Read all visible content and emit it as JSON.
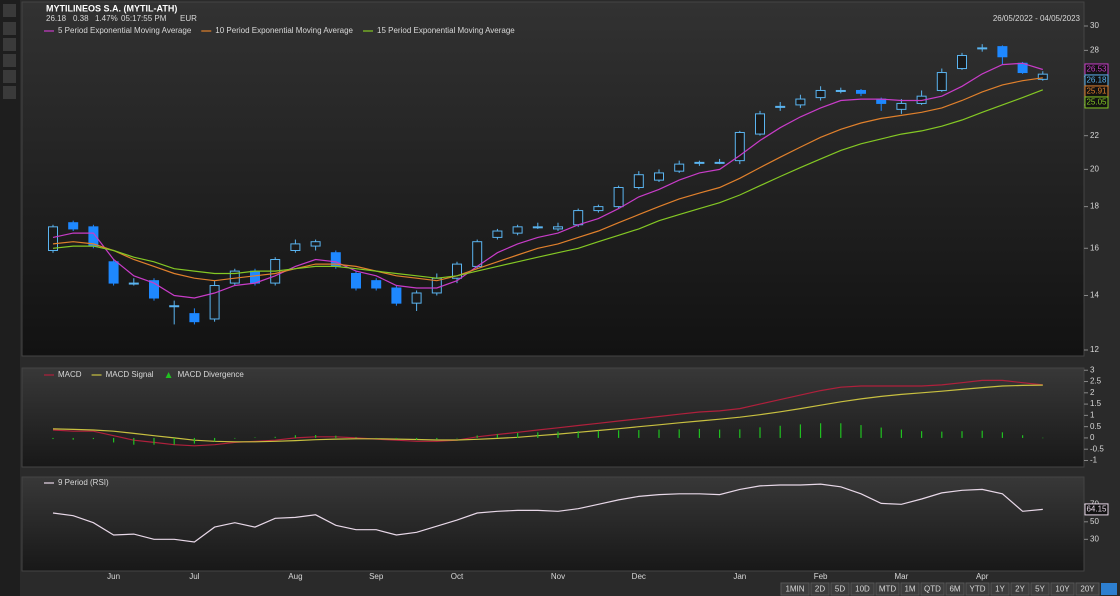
{
  "header": {
    "title": "MYTILINEOS S.A. (MYTIL-ATH)",
    "quote": [
      "26.18",
      "0.38",
      "1.47%",
      "05:17:55 PM",
      "EUR"
    ],
    "range": "26/05/2022 - 04/05/2023"
  },
  "toolbar": [
    "1MIN",
    "2D",
    "5D",
    "10D",
    "MTD",
    "1M",
    "QTD",
    "6M",
    "YTD",
    "1Y",
    "2Y",
    "5Y",
    "10Y",
    "20Y"
  ],
  "chart_data": [
    {
      "type": "candlestick",
      "log_scale": true,
      "up_color": "#5ab4f0",
      "down_color": "#1e88ff",
      "categories": [
        null,
        null,
        null,
        "Jun",
        null,
        null,
        null,
        "Jul",
        null,
        null,
        null,
        null,
        "Aug",
        null,
        null,
        null,
        "Sep",
        null,
        null,
        null,
        "Oct",
        null,
        null,
        null,
        null,
        "Nov",
        null,
        null,
        null,
        "Dec",
        null,
        null,
        null,
        null,
        "Jan",
        null,
        null,
        null,
        "Feb",
        null,
        null,
        null,
        "Mar",
        null,
        null,
        null,
        "Apr",
        null,
        null,
        null
      ],
      "open": [
        15.9,
        17.2,
        17.0,
        15.4,
        14.5,
        14.6,
        13.6,
        13.3,
        13.1,
        14.5,
        15.0,
        14.5,
        15.9,
        16.1,
        15.8,
        14.9,
        14.6,
        14.3,
        13.7,
        14.1,
        14.7,
        15.2,
        16.5,
        16.7,
        17.0,
        16.9,
        17.1,
        17.8,
        18.0,
        19.0,
        19.4,
        19.9,
        20.4,
        20.4,
        20.5,
        22.1,
        23.9,
        24.0,
        24.5,
        25.0,
        25.0,
        24.4,
        23.7,
        24.1,
        25.0,
        26.6,
        28.2,
        28.3,
        27.0,
        25.8
      ],
      "high": [
        17.1,
        17.3,
        17.1,
        15.5,
        14.7,
        14.7,
        13.8,
        13.5,
        14.6,
        15.1,
        15.1,
        15.6,
        16.4,
        16.4,
        15.9,
        15.0,
        14.7,
        14.4,
        14.2,
        14.9,
        15.4,
        16.4,
        16.9,
        17.1,
        17.2,
        17.2,
        17.9,
        18.1,
        19.1,
        19.9,
        20.0,
        20.5,
        20.5,
        20.6,
        22.3,
        23.6,
        24.2,
        24.7,
        25.3,
        25.2,
        25.1,
        24.5,
        24.4,
        25.0,
        26.6,
        27.8,
        28.5,
        28.4,
        27.1,
        26.4
      ],
      "low": [
        15.8,
        16.8,
        16.0,
        14.4,
        14.4,
        13.8,
        12.9,
        12.9,
        13.0,
        14.4,
        14.4,
        14.4,
        15.8,
        15.9,
        15.1,
        14.2,
        14.2,
        13.6,
        13.4,
        14.0,
        14.5,
        15.1,
        16.4,
        16.6,
        16.9,
        16.8,
        17.0,
        17.7,
        17.9,
        18.9,
        19.3,
        19.8,
        20.2,
        20.3,
        20.3,
        22.0,
        23.6,
        23.8,
        24.3,
        24.8,
        24.6,
        23.6,
        23.4,
        24.0,
        24.9,
        26.5,
        27.9,
        26.9,
        26.2,
        25.7
      ],
      "close": [
        17.0,
        16.9,
        16.1,
        14.5,
        14.5,
        13.9,
        13.6,
        13.0,
        14.4,
        15.0,
        14.5,
        15.5,
        16.2,
        16.3,
        15.2,
        14.3,
        14.3,
        13.7,
        14.1,
        14.7,
        15.3,
        16.3,
        16.8,
        17.0,
        17.0,
        17.0,
        17.8,
        18.0,
        19.0,
        19.7,
        19.8,
        20.3,
        20.4,
        20.4,
        22.2,
        23.4,
        23.9,
        24.4,
        25.0,
        25.0,
        24.8,
        24.1,
        24.1,
        24.6,
        26.3,
        27.6,
        28.2,
        27.5,
        26.3,
        26.18
      ],
      "series": [
        {
          "name": "5 Period Exponential Moving Average",
          "color": "#c83cc8",
          "values": [
            16.5,
            16.7,
            16.7,
            15.5,
            14.8,
            14.5,
            14.0,
            13.9,
            14.1,
            14.4,
            14.5,
            14.8,
            15.2,
            15.5,
            15.4,
            15.0,
            14.8,
            14.4,
            14.3,
            14.3,
            14.6,
            15.2,
            15.8,
            16.2,
            16.5,
            16.7,
            17.1,
            17.4,
            17.9,
            18.5,
            18.9,
            19.4,
            19.8,
            20.0,
            20.8,
            21.7,
            22.5,
            23.2,
            23.8,
            24.3,
            24.4,
            24.4,
            24.3,
            24.3,
            24.6,
            25.3,
            26.2,
            26.9,
            27.0,
            26.53
          ]
        },
        {
          "name": "10 Period Exponential Moving Average",
          "color": "#e0802c",
          "values": [
            16.2,
            16.3,
            16.2,
            15.9,
            15.5,
            15.2,
            14.9,
            14.7,
            14.6,
            14.7,
            14.8,
            14.9,
            15.1,
            15.3,
            15.3,
            15.2,
            15.0,
            14.8,
            14.7,
            14.6,
            14.8,
            15.1,
            15.4,
            15.7,
            16.0,
            16.2,
            16.5,
            16.8,
            17.2,
            17.6,
            18.0,
            18.4,
            18.7,
            19.0,
            19.5,
            20.1,
            20.7,
            21.3,
            21.9,
            22.4,
            22.8,
            23.1,
            23.3,
            23.5,
            23.8,
            24.3,
            24.9,
            25.4,
            25.7,
            25.91
          ]
        },
        {
          "name": "15 Period Exponential Moving Average",
          "color": "#84c824",
          "values": [
            16.0,
            16.1,
            16.1,
            15.9,
            15.6,
            15.4,
            15.1,
            15.0,
            14.9,
            14.9,
            15.0,
            15.0,
            15.1,
            15.2,
            15.2,
            15.1,
            15.0,
            14.9,
            14.8,
            14.7,
            14.8,
            15.0,
            15.2,
            15.4,
            15.6,
            15.8,
            16.0,
            16.3,
            16.6,
            16.9,
            17.3,
            17.6,
            17.9,
            18.2,
            18.6,
            19.1,
            19.6,
            20.1,
            20.6,
            21.1,
            21.5,
            21.8,
            22.1,
            22.3,
            22.6,
            23.0,
            23.5,
            24.0,
            24.5,
            25.05
          ]
        }
      ],
      "ylim": [
        12,
        30
      ],
      "yticks": [
        12,
        14,
        16,
        18,
        20,
        22,
        24,
        26,
        28,
        30
      ]
    },
    {
      "type": "line",
      "series": [
        {
          "name": "MACD",
          "color": "#b0203c",
          "values": [
            0.35,
            0.3,
            0.3,
            0.1,
            -0.1,
            -0.2,
            -0.3,
            -0.35,
            -0.3,
            -0.2,
            -0.15,
            -0.1,
            0,
            0.05,
            0.05,
            0,
            -0.05,
            -0.1,
            -0.15,
            -0.15,
            -0.1,
            0.05,
            0.15,
            0.25,
            0.35,
            0.45,
            0.55,
            0.65,
            0.75,
            0.85,
            0.95,
            1.05,
            1.15,
            1.2,
            1.3,
            1.5,
            1.7,
            1.9,
            2.1,
            2.25,
            2.3,
            2.3,
            2.3,
            2.3,
            2.35,
            2.45,
            2.55,
            2.55,
            2.45,
            2.35
          ]
        },
        {
          "name": "MACD Signal",
          "color": "#c8c040",
          "values": [
            0.4,
            0.38,
            0.35,
            0.3,
            0.2,
            0.1,
            0,
            -0.1,
            -0.15,
            -0.17,
            -0.17,
            -0.15,
            -0.12,
            -0.08,
            -0.05,
            -0.04,
            -0.04,
            -0.05,
            -0.07,
            -0.09,
            -0.09,
            -0.06,
            -0.02,
            0.03,
            0.1,
            0.17,
            0.25,
            0.33,
            0.41,
            0.5,
            0.58,
            0.67,
            0.75,
            0.83,
            0.92,
            1.03,
            1.16,
            1.3,
            1.45,
            1.6,
            1.73,
            1.84,
            1.93,
            2.0,
            2.07,
            2.15,
            2.23,
            2.3,
            2.33,
            2.34
          ]
        },
        {
          "name": "MACD Divergence",
          "color": "#20c020",
          "kind": "bar",
          "values": [
            -0.05,
            -0.08,
            -0.05,
            -0.2,
            -0.3,
            -0.3,
            -0.3,
            -0.25,
            -0.15,
            -0.03,
            0.02,
            0.05,
            0.12,
            0.13,
            0.1,
            0.04,
            -0.01,
            -0.05,
            -0.08,
            -0.06,
            -0.01,
            0.11,
            0.17,
            0.22,
            0.25,
            0.28,
            0.3,
            0.32,
            0.34,
            0.35,
            0.37,
            0.38,
            0.4,
            0.37,
            0.38,
            0.47,
            0.54,
            0.6,
            0.65,
            0.65,
            0.57,
            0.46,
            0.37,
            0.3,
            0.28,
            0.3,
            0.32,
            0.25,
            0.12,
            0.01
          ]
        }
      ],
      "ylim": [
        -1.2,
        3.1
      ],
      "yticks": [
        3,
        2.5,
        2,
        1.5,
        1,
        0.5,
        0,
        -0.5,
        -1
      ]
    },
    {
      "type": "line",
      "series": [
        {
          "name": "9 Period (RSI)",
          "color": "#e8d8e8",
          "values": [
            60,
            57,
            49,
            35,
            36,
            30,
            30,
            27,
            44,
            49,
            44,
            54,
            55,
            58,
            46,
            41,
            41,
            35,
            38,
            45,
            52,
            60,
            62,
            63,
            63,
            62,
            65,
            70,
            75,
            79,
            81,
            82,
            82,
            81,
            87,
            91,
            92,
            92,
            93,
            90,
            82,
            71,
            70,
            76,
            83,
            86,
            87,
            82,
            62,
            64.15
          ]
        }
      ],
      "ylim": [
        -5,
        100
      ],
      "yticks": [
        70,
        50,
        30
      ]
    }
  ]
}
